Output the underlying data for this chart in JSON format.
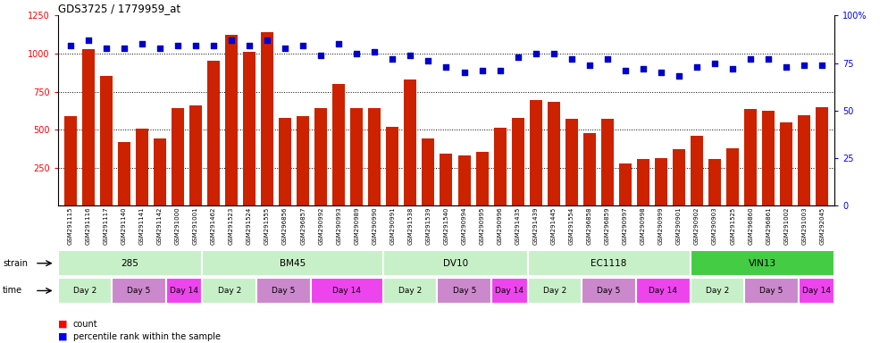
{
  "title": "GDS3725 / 1779959_at",
  "samples": [
    "GSM291115",
    "GSM291116",
    "GSM291117",
    "GSM291140",
    "GSM291141",
    "GSM291142",
    "GSM291000",
    "GSM291001",
    "GSM291462",
    "GSM291523",
    "GSM291524",
    "GSM291555",
    "GSM296856",
    "GSM296857",
    "GSM290992",
    "GSM290993",
    "GSM290989",
    "GSM290990",
    "GSM290991",
    "GSM291538",
    "GSM291539",
    "GSM291540",
    "GSM290994",
    "GSM290995",
    "GSM290996",
    "GSM291435",
    "GSM291439",
    "GSM291445",
    "GSM291554",
    "GSM296858",
    "GSM296859",
    "GSM290997",
    "GSM290998",
    "GSM290999",
    "GSM290901",
    "GSM290902",
    "GSM290903",
    "GSM291525",
    "GSM296860",
    "GSM296861",
    "GSM291002",
    "GSM291003",
    "GSM292045"
  ],
  "counts": [
    590,
    1030,
    850,
    420,
    505,
    440,
    640,
    660,
    955,
    1120,
    1010,
    1140,
    580,
    590,
    640,
    800,
    640,
    640,
    520,
    830,
    440,
    340,
    330,
    355,
    510,
    575,
    695,
    680,
    570,
    480,
    570,
    280,
    310,
    315,
    370,
    460,
    310,
    380,
    635,
    625,
    550,
    595,
    645
  ],
  "percentiles": [
    84,
    87,
    83,
    83,
    85,
    83,
    84,
    84,
    84,
    87,
    84,
    87,
    83,
    84,
    79,
    85,
    80,
    81,
    77,
    79,
    76,
    73,
    70,
    71,
    71,
    78,
    80,
    80,
    77,
    74,
    77,
    71,
    72,
    70,
    68,
    73,
    75,
    72,
    77,
    77,
    73,
    74,
    74
  ],
  "strains": [
    {
      "label": "285",
      "start": 0,
      "end": 8
    },
    {
      "label": "BM45",
      "start": 8,
      "end": 18
    },
    {
      "label": "DV10",
      "start": 18,
      "end": 26
    },
    {
      "label": "EC1118",
      "start": 26,
      "end": 35
    },
    {
      "label": "VIN13",
      "start": 35,
      "end": 43
    }
  ],
  "times": [
    {
      "label": "Day 2",
      "start": 0,
      "end": 3
    },
    {
      "label": "Day 5",
      "start": 3,
      "end": 6
    },
    {
      "label": "Day 14",
      "start": 6,
      "end": 8
    },
    {
      "label": "Day 2",
      "start": 8,
      "end": 11
    },
    {
      "label": "Day 5",
      "start": 11,
      "end": 14
    },
    {
      "label": "Day 14",
      "start": 14,
      "end": 18
    },
    {
      "label": "Day 2",
      "start": 18,
      "end": 21
    },
    {
      "label": "Day 5",
      "start": 21,
      "end": 24
    },
    {
      "label": "Day 14",
      "start": 24,
      "end": 26
    },
    {
      "label": "Day 2",
      "start": 26,
      "end": 29
    },
    {
      "label": "Day 5",
      "start": 29,
      "end": 32
    },
    {
      "label": "Day 14",
      "start": 32,
      "end": 35
    },
    {
      "label": "Day 2",
      "start": 35,
      "end": 38
    },
    {
      "label": "Day 5",
      "start": 38,
      "end": 41
    },
    {
      "label": "Day 14",
      "start": 41,
      "end": 43
    }
  ],
  "bar_color": "#cc2200",
  "dot_color": "#0000cc",
  "ylim_left": [
    0,
    1250
  ],
  "ylim_right": [
    0,
    100
  ],
  "yticks_left": [
    250,
    500,
    750,
    1000,
    1250
  ],
  "yticks_right": [
    0,
    25,
    50,
    75,
    100
  ],
  "strain_color_light": "#c8f0c8",
  "strain_color_bright": "#44dd44",
  "time_day2_color": "#c8f0c8",
  "time_day5_color": "#cc88cc",
  "time_day14_color": "#ee44ee"
}
